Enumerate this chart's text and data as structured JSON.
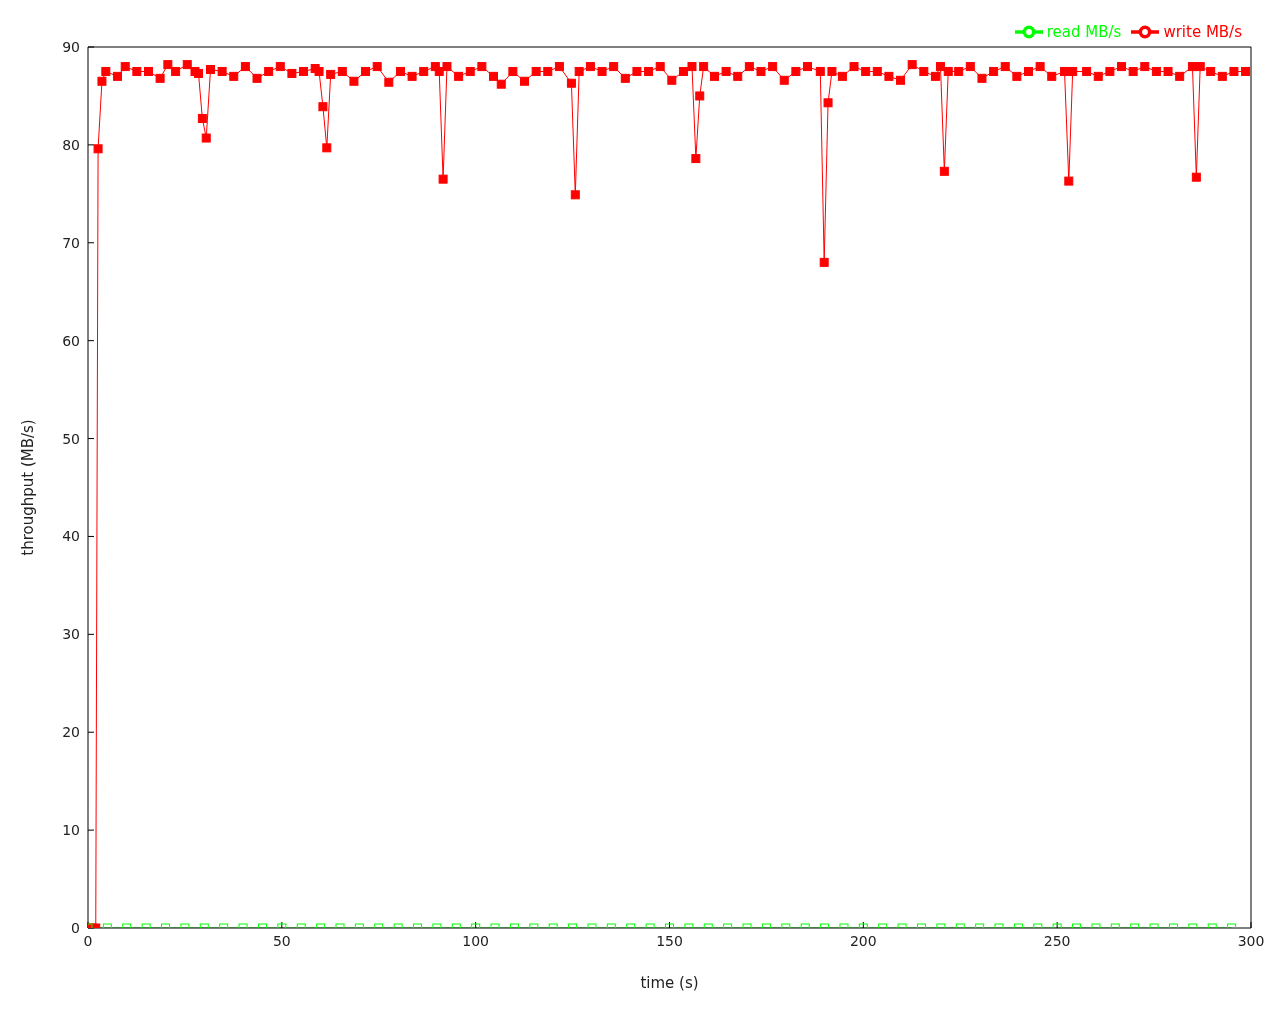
{
  "chart_data": {
    "type": "line",
    "xlabel": "time (s)",
    "ylabel": "throughput (MB/s)",
    "xlim": [
      0,
      300
    ],
    "xticks": [
      0,
      50,
      100,
      150,
      200,
      250,
      300
    ],
    "ylim": [
      0,
      90
    ],
    "yticks": [
      0,
      10,
      20,
      30,
      40,
      50,
      60,
      70,
      80,
      90
    ],
    "grid": false,
    "legend": "top right",
    "marker": "square",
    "line_style": "solid",
    "series": [
      {
        "name": "write MB/s",
        "color": "#ff0000",
        "x": [
          0,
          1,
          2,
          2.6,
          3.6,
          4.6,
          7.6,
          9.6,
          12.6,
          15.6,
          18.6,
          20.6,
          22.6,
          25.6,
          27.6,
          28.5,
          29.5,
          30.5,
          31.6,
          34.6,
          37.6,
          40.6,
          43.6,
          46.6,
          49.6,
          52.6,
          55.6,
          58.6,
          59.6,
          60.6,
          61.6,
          62.6,
          65.6,
          68.6,
          71.6,
          74.6,
          77.6,
          80.6,
          83.6,
          86.6,
          89.6,
          90.6,
          91.6,
          92.6,
          95.6,
          98.6,
          101.6,
          104.6,
          106.6,
          109.6,
          112.6,
          115.6,
          118.6,
          121.6,
          124.7,
          125.7,
          126.7,
          129.6,
          132.6,
          135.6,
          138.6,
          141.6,
          144.6,
          147.6,
          150.6,
          153.6,
          155.8,
          156.8,
          157.8,
          158.8,
          161.6,
          164.6,
          167.6,
          170.6,
          173.6,
          176.6,
          179.6,
          182.6,
          185.6,
          188.9,
          189.9,
          190.9,
          191.9,
          194.6,
          197.6,
          200.6,
          203.6,
          206.6,
          209.6,
          212.6,
          215.6,
          218.6,
          219.9,
          220.9,
          221.9,
          224.6,
          227.6,
          230.6,
          233.6,
          236.6,
          239.6,
          242.6,
          245.6,
          248.6,
          251.9,
          253.0,
          254.0,
          257.6,
          260.6,
          263.6,
          266.6,
          269.6,
          272.6,
          275.6,
          278.6,
          281.6,
          284.9,
          285.9,
          286.9,
          289.6,
          292.6,
          295.6,
          298.6
        ],
        "values": [
          0,
          0,
          0,
          79.6,
          86.5,
          87.5,
          87.0,
          88.0,
          87.5,
          87.5,
          86.8,
          88.2,
          87.5,
          88.2,
          87.5,
          87.3,
          82.7,
          80.7,
          87.7,
          87.5,
          87.0,
          88.0,
          86.8,
          87.5,
          88.0,
          87.3,
          87.5,
          87.8,
          87.5,
          83.9,
          79.7,
          87.2,
          87.5,
          86.5,
          87.5,
          88.0,
          86.4,
          87.5,
          87.0,
          87.5,
          88.0,
          87.5,
          76.5,
          88.0,
          87.0,
          87.5,
          88.0,
          87.0,
          86.2,
          87.5,
          86.5,
          87.5,
          87.5,
          88.0,
          86.3,
          74.9,
          87.5,
          88.0,
          87.5,
          88.0,
          86.8,
          87.5,
          87.5,
          88.0,
          86.6,
          87.5,
          88.0,
          78.6,
          85.0,
          88.0,
          87.0,
          87.5,
          87.0,
          88.0,
          87.5,
          88.0,
          86.6,
          87.5,
          88.0,
          87.5,
          68.0,
          84.3,
          87.5,
          87.0,
          88.0,
          87.5,
          87.5,
          87.0,
          86.6,
          88.2,
          87.5,
          87.0,
          88.0,
          77.3,
          87.5,
          87.5,
          88.0,
          86.8,
          87.5,
          88.0,
          87.0,
          87.5,
          88.0,
          87.0,
          87.5,
          76.3,
          87.5,
          87.5,
          87.0,
          87.5,
          88.0,
          87.5,
          88.0,
          87.5,
          87.5,
          87.0,
          88.0,
          76.7,
          88.0,
          87.5,
          87.0,
          87.5,
          87.5
        ]
      },
      {
        "name": "read MB/s",
        "color": "#00ff00",
        "x": [
          0,
          5,
          10,
          15,
          20,
          25,
          30,
          35,
          40,
          45,
          50,
          55,
          60,
          65,
          70,
          75,
          80,
          85,
          90,
          95,
          100,
          105,
          110,
          115,
          120,
          125,
          130,
          135,
          140,
          145,
          150,
          155,
          160,
          165,
          170,
          175,
          180,
          185,
          190,
          195,
          200,
          205,
          210,
          215,
          220,
          225,
          230,
          235,
          240,
          245,
          250,
          255,
          260,
          265,
          270,
          275,
          280,
          285,
          290,
          295
        ],
        "values": [
          0,
          0,
          0,
          0,
          0,
          0,
          0,
          0,
          0,
          0,
          0,
          0,
          0,
          0,
          0,
          0,
          0,
          0,
          0,
          0,
          0,
          0,
          0,
          0,
          0,
          0,
          0,
          0,
          0,
          0,
          0,
          0,
          0,
          0,
          0,
          0,
          0,
          0,
          0,
          0,
          0,
          0,
          0,
          0,
          0,
          0,
          0,
          0,
          0,
          0,
          0,
          0,
          0,
          0,
          0,
          0,
          0,
          0,
          0,
          0
        ]
      }
    ]
  }
}
